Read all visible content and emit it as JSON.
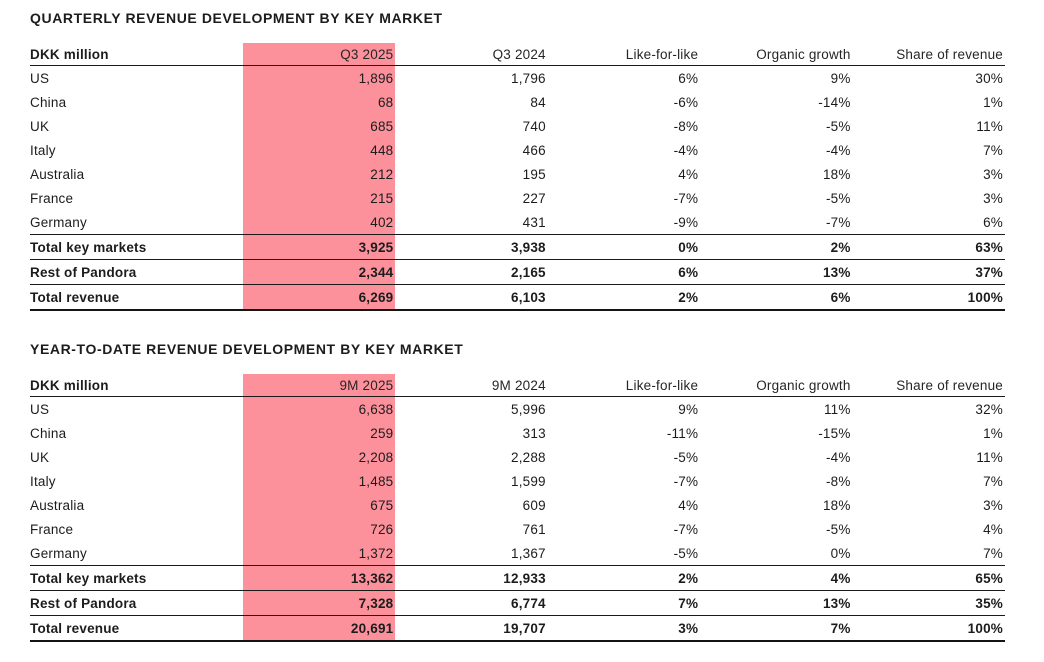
{
  "highlight_color": "#FC919B",
  "tables": [
    {
      "title": "QUARTERLY REVENUE DEVELOPMENT BY KEY MARKET",
      "unit_label": "DKK million",
      "columns": [
        "Q3 2025",
        "Q3 2024",
        "Like-for-like",
        "Organic growth",
        "Share of revenue"
      ],
      "highlighted_column": "Q3 2025",
      "rows": [
        {
          "label": "US",
          "type": "market",
          "values": [
            "1,896",
            "1,796",
            "6%",
            "9%",
            "30%"
          ]
        },
        {
          "label": "China",
          "type": "market",
          "values": [
            "68",
            "84",
            "-6%",
            "-14%",
            "1%"
          ]
        },
        {
          "label": "UK",
          "type": "market",
          "values": [
            "685",
            "740",
            "-8%",
            "-5%",
            "11%"
          ]
        },
        {
          "label": "Italy",
          "type": "market",
          "values": [
            "448",
            "466",
            "-4%",
            "-4%",
            "7%"
          ]
        },
        {
          "label": "Australia",
          "type": "market",
          "values": [
            "212",
            "195",
            "4%",
            "18%",
            "3%"
          ]
        },
        {
          "label": "France",
          "type": "market",
          "values": [
            "215",
            "227",
            "-7%",
            "-5%",
            "3%"
          ]
        },
        {
          "label": "Germany",
          "type": "market",
          "values": [
            "402",
            "431",
            "-9%",
            "-7%",
            "6%"
          ]
        },
        {
          "label": "Total key markets",
          "type": "subtotal",
          "values": [
            "3,925",
            "3,938",
            "0%",
            "2%",
            "63%"
          ]
        },
        {
          "label": "Rest of Pandora",
          "type": "segment",
          "values": [
            "2,344",
            "2,165",
            "6%",
            "13%",
            "37%"
          ]
        },
        {
          "label": "Total revenue",
          "type": "total",
          "values": [
            "6,269",
            "6,103",
            "2%",
            "6%",
            "100%"
          ]
        }
      ]
    },
    {
      "title": "YEAR-TO-DATE REVENUE DEVELOPMENT BY KEY MARKET",
      "unit_label": "DKK million",
      "columns": [
        "9M 2025",
        "9M 2024",
        "Like-for-like",
        "Organic growth",
        "Share of revenue"
      ],
      "highlighted_column": "9M 2025",
      "rows": [
        {
          "label": "US",
          "type": "market",
          "values": [
            "6,638",
            "5,996",
            "9%",
            "11%",
            "32%"
          ]
        },
        {
          "label": "China",
          "type": "market",
          "values": [
            "259",
            "313",
            "-11%",
            "-15%",
            "1%"
          ]
        },
        {
          "label": "UK",
          "type": "market",
          "values": [
            "2,208",
            "2,288",
            "-5%",
            "-4%",
            "11%"
          ]
        },
        {
          "label": "Italy",
          "type": "market",
          "values": [
            "1,485",
            "1,599",
            "-7%",
            "-8%",
            "7%"
          ]
        },
        {
          "label": "Australia",
          "type": "market",
          "values": [
            "675",
            "609",
            "4%",
            "18%",
            "3%"
          ]
        },
        {
          "label": "France",
          "type": "market",
          "values": [
            "726",
            "761",
            "-7%",
            "-5%",
            "4%"
          ]
        },
        {
          "label": "Germany",
          "type": "market",
          "values": [
            "1,372",
            "1,367",
            "-5%",
            "0%",
            "7%"
          ]
        },
        {
          "label": "Total key markets",
          "type": "subtotal",
          "values": [
            "13,362",
            "12,933",
            "2%",
            "4%",
            "65%"
          ]
        },
        {
          "label": "Rest of Pandora",
          "type": "segment",
          "values": [
            "7,328",
            "6,774",
            "7%",
            "13%",
            "35%"
          ]
        },
        {
          "label": "Total revenue",
          "type": "total",
          "values": [
            "20,691",
            "19,707",
            "3%",
            "7%",
            "100%"
          ]
        }
      ]
    }
  ]
}
